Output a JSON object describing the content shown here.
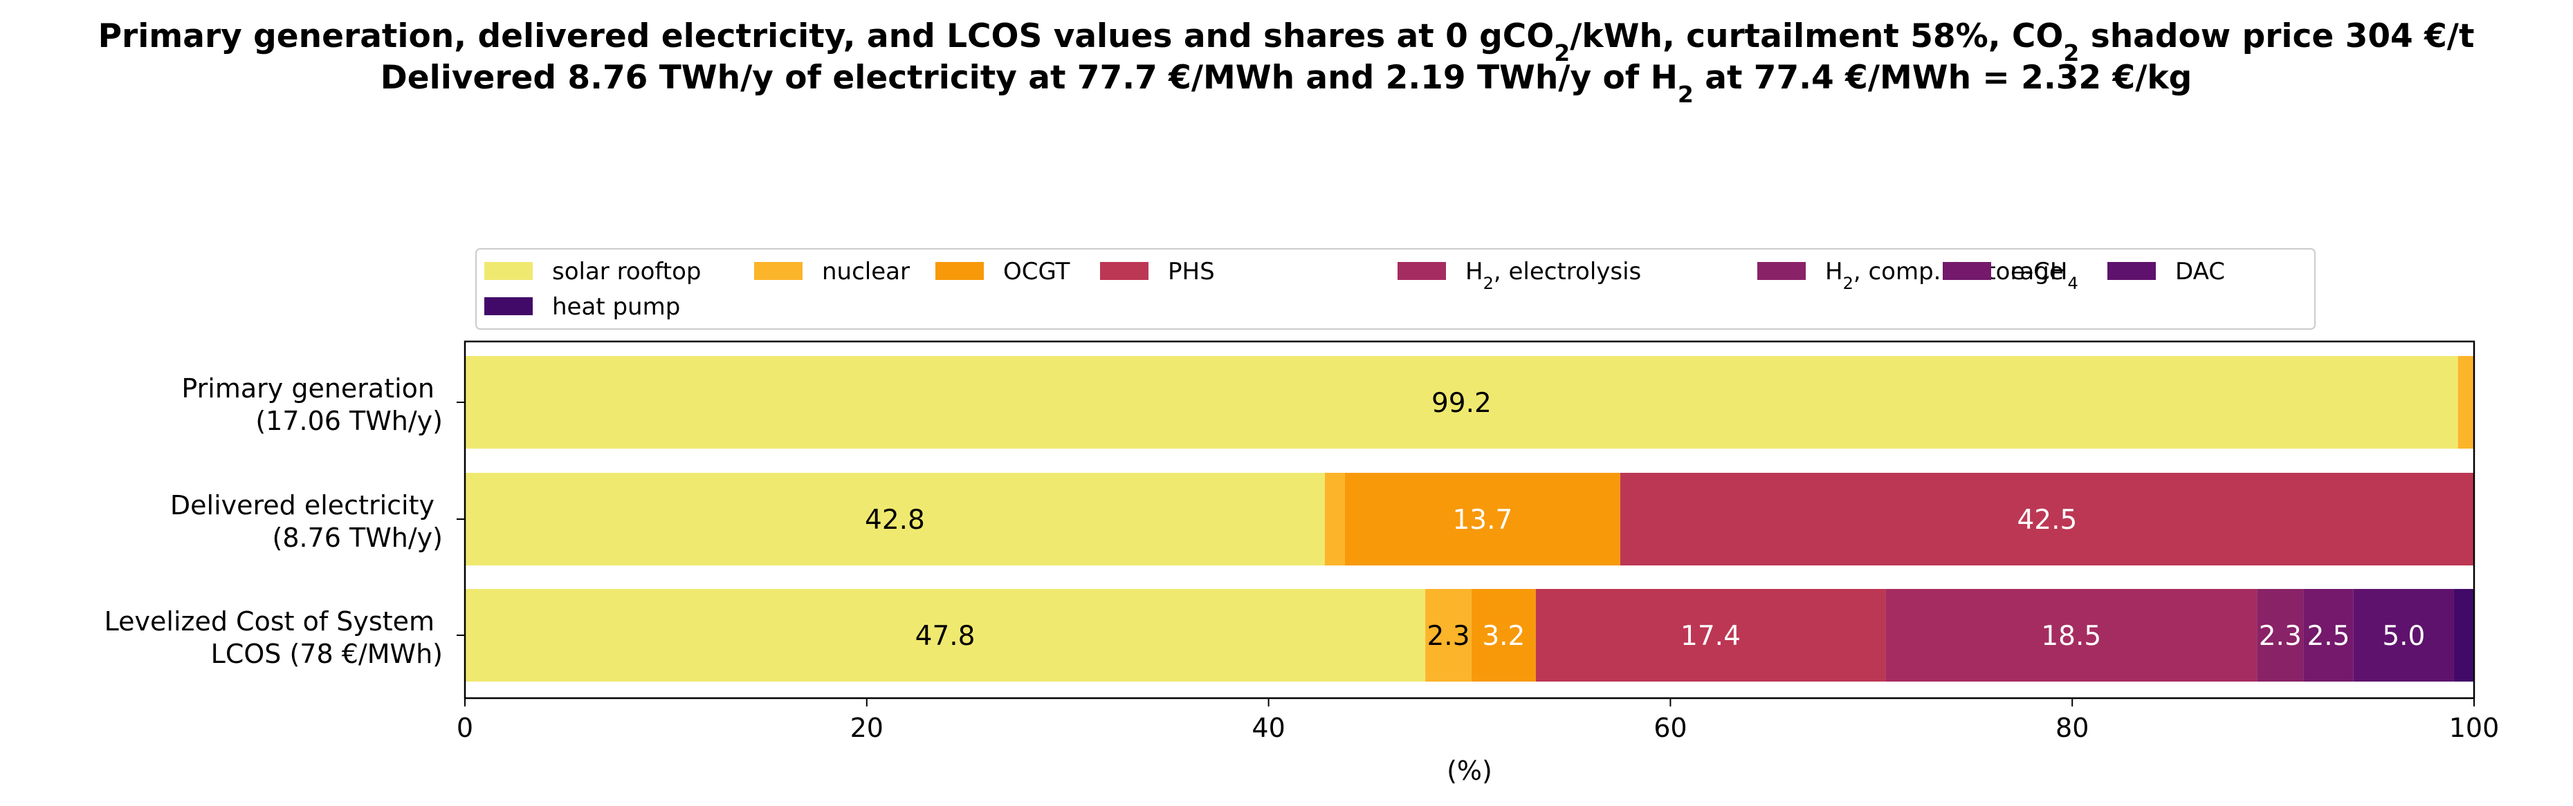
{
  "chart_data": {
    "type": "bar",
    "orientation": "horizontal",
    "stacked": true,
    "title": {
      "line1": [
        {
          "text": "Primary generation, delivered electricity, and LCOS values and shares at 0 gCO"
        },
        {
          "text": "2",
          "sub": true
        },
        {
          "text": "/kWh, curtailment 58%, CO"
        },
        {
          "text": "2",
          "sub": true
        },
        {
          "text": " shadow price 304 €/t"
        }
      ],
      "line2": [
        {
          "text": "Delivered 8.76 TWh/y of electricity at 77.7 €/MWh and 2.19 TWh/y of H"
        },
        {
          "text": "2",
          "sub": true
        },
        {
          "text": " at 77.4 €/MWh = 2.32 €/kg"
        }
      ]
    },
    "xlabel": "(%)",
    "xlim": [
      0,
      100
    ],
    "xticks": [
      "0",
      "20",
      "40",
      "60",
      "80",
      "100"
    ],
    "grid": false,
    "legend_placement": "top-center",
    "categories": [
      {
        "line1": "Primary generation",
        "line2": "(17.06 TWh/y)"
      },
      {
        "line1": "Delivered electricity",
        "line2": "(8.76 TWh/y)"
      },
      {
        "line1": "Levelized Cost of System",
        "line2": "LCOS  (78 €/MWh)"
      }
    ],
    "series": [
      {
        "name": [
          {
            "text": "solar rooftop"
          }
        ],
        "color": "#f0e970",
        "label_color": "#000000",
        "values": [
          99.2,
          42.8,
          47.8
        ],
        "labels": [
          "99.2",
          "42.8",
          "47.8"
        ]
      },
      {
        "name": [
          {
            "text": "nuclear"
          }
        ],
        "color": "#fcb42a",
        "label_color": "#000000",
        "values": [
          0.8,
          1.0,
          2.3
        ],
        "labels": [
          "",
          "",
          "2.3"
        ]
      },
      {
        "name": [
          {
            "text": "OCGT"
          }
        ],
        "color": "#f8990a",
        "label_color": "#ffffff",
        "values": [
          0,
          13.7,
          3.2
        ],
        "labels": [
          "",
          "13.7",
          "3.2"
        ]
      },
      {
        "name": [
          {
            "text": "PHS"
          }
        ],
        "color": "#bc3754",
        "label_color": "#ffffff",
        "values": [
          0,
          42.5,
          17.4
        ],
        "labels": [
          "",
          "42.5",
          "17.4"
        ]
      },
      {
        "name": [
          {
            "text": "H"
          },
          {
            "text": "2",
            "sub": true
          },
          {
            "text": ", electrolysis"
          }
        ],
        "color": "#a52c60",
        "label_color": "#ffffff",
        "values": [
          0,
          0,
          18.5
        ],
        "labels": [
          "",
          "",
          "18.5"
        ]
      },
      {
        "name": [
          {
            "text": "H"
          },
          {
            "text": "2",
            "sub": true
          },
          {
            "text": ", comp. & storage"
          }
        ],
        "color": "#8a2267",
        "label_color": "#ffffff",
        "values": [
          0,
          0,
          2.3
        ],
        "labels": [
          "",
          "",
          "2.3"
        ]
      },
      {
        "name": [
          {
            "text": "e-CH"
          },
          {
            "text": "4",
            "sub": true
          }
        ],
        "color": "#74196c",
        "label_color": "#ffffff",
        "values": [
          0,
          0,
          2.5
        ],
        "labels": [
          "",
          "",
          "2.5"
        ]
      },
      {
        "name": [
          {
            "text": "DAC"
          }
        ],
        "color": "#5e126d",
        "label_color": "#ffffff",
        "values": [
          0,
          0,
          5.0
        ],
        "labels": [
          "",
          "",
          "5.0"
        ]
      },
      {
        "name": [
          {
            "text": "heat pump"
          }
        ],
        "color": "#420a68",
        "label_color": "#ffffff",
        "values": [
          0,
          0,
          1.0
        ],
        "labels": [
          "",
          "",
          ""
        ]
      }
    ]
  }
}
